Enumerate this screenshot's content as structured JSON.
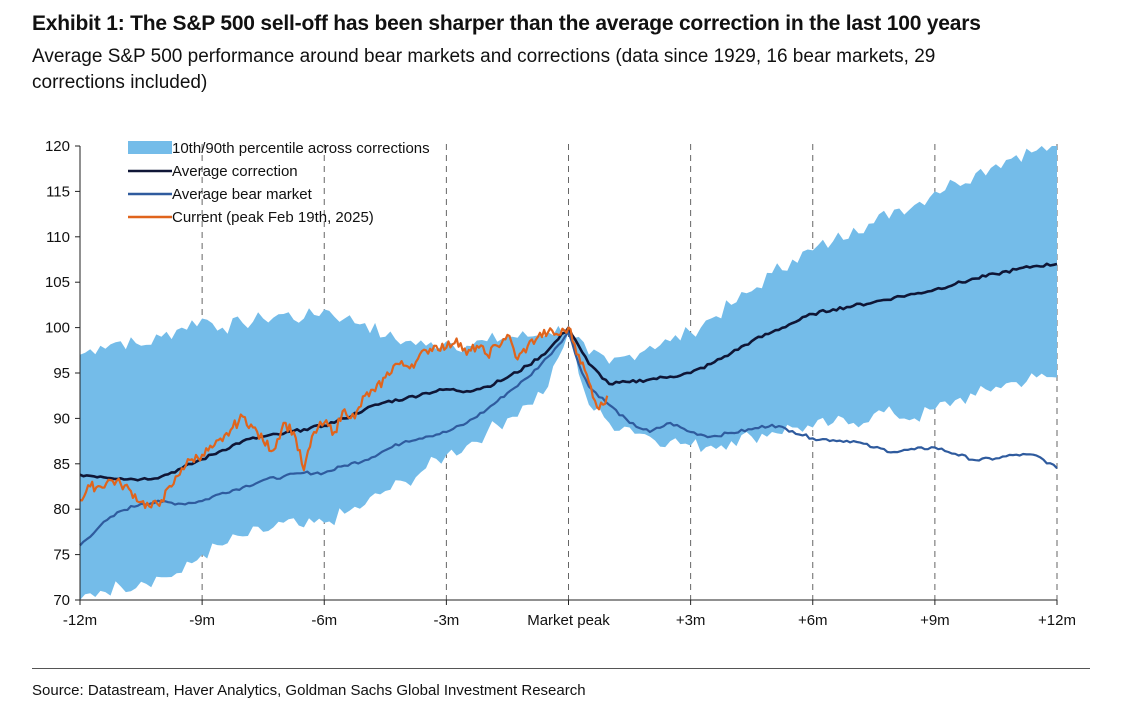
{
  "header": {
    "title": "Exhibit 1: The S&P 500 sell-off has been sharper than the average correction in the last 100 years",
    "subtitle": "Average S&P 500 performance around bear markets and corrections (data since 1929, 16 bear markets, 29 corrections included)"
  },
  "footer": {
    "source": "Source: Datastream, Haver Analytics, Goldman Sachs Global Investment Research"
  },
  "chart_data": {
    "type": "line",
    "title": "",
    "xlabel": "",
    "ylabel": "",
    "x_ticks": [
      "-12m",
      "-9m",
      "-6m",
      "-3m",
      "Market peak",
      "+3m",
      "+6m",
      "+9m",
      "+12m"
    ],
    "x_tick_values": [
      -12,
      -9,
      -6,
      -3,
      0,
      3,
      6,
      9,
      12
    ],
    "xlim": [
      -12,
      12
    ],
    "ylim": [
      70,
      120
    ],
    "y_ticks": [
      70,
      75,
      80,
      85,
      90,
      95,
      100,
      105,
      110,
      115,
      120
    ],
    "grid": "vertical dashed at x ticks",
    "legend_position": "top-left",
    "legend": [
      "10th/90th percentile across corrections",
      "Average correction",
      "Average bear market",
      "Current (peak Feb 19th, 2025)"
    ],
    "colors": {
      "band": "#74bce9",
      "average_correction": "#0f1636",
      "average_bear_market": "#2f5b9e",
      "current": "#e0641c"
    },
    "band": {
      "name": "10th/90th percentile across corrections",
      "x": [
        -12,
        -11.5,
        -11,
        -10.5,
        -10,
        -9.5,
        -9,
        -8.5,
        -8,
        -7.5,
        -7,
        -6.5,
        -6,
        -5.5,
        -5,
        -4.5,
        -4,
        -3.5,
        -3,
        -2.5,
        -2,
        -1.5,
        -1,
        -0.5,
        0,
        0.5,
        1,
        1.5,
        2,
        2.5,
        3,
        3.5,
        4,
        4.5,
        5,
        5.5,
        6,
        6.5,
        7,
        7.5,
        8,
        8.5,
        9,
        9.5,
        10,
        10.5,
        11,
        11.5,
        12
      ],
      "upper": [
        97,
        98,
        98.5,
        98,
        99,
        100,
        101,
        100,
        100.5,
        101,
        101.5,
        101,
        102,
        101,
        100.5,
        99,
        98.5,
        98,
        98.5,
        98,
        98.5,
        99,
        99,
        99.5,
        100,
        97,
        96,
        97,
        98,
        98.5,
        99.5,
        101,
        102.5,
        104,
        106,
        107.5,
        108.5,
        109.5,
        111,
        111.5,
        113,
        113.5,
        115,
        116,
        117,
        118,
        119,
        119.5,
        120
      ],
      "lower": [
        70,
        71,
        71.5,
        72,
        72.5,
        73,
        75,
        76,
        77,
        77.5,
        78.5,
        78,
        78.5,
        79.5,
        80.5,
        82,
        83,
        84.5,
        86,
        87,
        88.5,
        90,
        91.5,
        93.5,
        99.5,
        91.5,
        89.5,
        89,
        88,
        87.5,
        87,
        87,
        87.5,
        88,
        88.5,
        89,
        89,
        89.5,
        89.5,
        90.5,
        90.5,
        90,
        91,
        92,
        92.5,
        93.5,
        94,
        94.5,
        94.5
      ]
    },
    "series": [
      {
        "name": "Average correction",
        "x": [
          -12,
          -11.5,
          -11,
          -10.5,
          -10,
          -9.5,
          -9,
          -8.5,
          -8,
          -7.5,
          -7,
          -6.5,
          -6,
          -5.5,
          -5,
          -4.5,
          -4,
          -3.5,
          -3,
          -2.5,
          -2,
          -1.5,
          -1,
          -0.5,
          0,
          0.25,
          0.5,
          1,
          1.5,
          2,
          2.5,
          3,
          3.5,
          4,
          4.5,
          5,
          5.5,
          6,
          6.5,
          7,
          7.5,
          8,
          8.5,
          9,
          9.5,
          10,
          10.5,
          11,
          11.5,
          12
        ],
        "values": [
          83.8,
          83.6,
          83.4,
          83.3,
          83.6,
          84.5,
          85.5,
          86.5,
          87.5,
          88,
          88.3,
          88.8,
          89.2,
          90,
          91,
          91.8,
          92.2,
          92.8,
          93.2,
          93,
          93.5,
          94.5,
          95.8,
          97.5,
          100,
          98,
          96,
          93.8,
          94,
          94.3,
          94.6,
          95,
          96,
          97.2,
          98.5,
          99.5,
          100.5,
          101.5,
          102,
          102.4,
          102.8,
          103.3,
          103.7,
          104.2,
          104.8,
          105.4,
          105.9,
          106.4,
          106.8,
          107
        ]
      },
      {
        "name": "Average bear market",
        "x": [
          -12,
          -11.5,
          -11,
          -10.5,
          -10,
          -9.5,
          -9,
          -8.5,
          -8,
          -7.5,
          -7,
          -6.5,
          -6,
          -5.5,
          -5,
          -4.5,
          -4,
          -3.5,
          -3,
          -2.5,
          -2,
          -1.5,
          -1,
          -0.5,
          0,
          0.25,
          0.5,
          1,
          1.5,
          2,
          2.5,
          3,
          3.5,
          4,
          4.5,
          5,
          5.5,
          6,
          6.5,
          7,
          7.5,
          8,
          8.5,
          9,
          9.5,
          10,
          10.5,
          11,
          11.5,
          12
        ],
        "values": [
          76,
          78.2,
          79.8,
          80.6,
          80.8,
          80.6,
          80.9,
          81.8,
          82.4,
          83.2,
          83.6,
          84,
          84,
          84.8,
          85.4,
          86.5,
          87.5,
          88,
          88.5,
          89.5,
          91,
          92.8,
          94.5,
          96.8,
          99.5,
          96,
          93.5,
          91.5,
          89.5,
          88.5,
          89.5,
          88.5,
          88,
          88.4,
          88.8,
          89.3,
          88.6,
          87.8,
          87.6,
          87.5,
          86.8,
          86.3,
          86.6,
          86.8,
          86.1,
          85.4,
          85.6,
          86,
          85.9,
          84.5
        ]
      },
      {
        "name": "Current (peak Feb 19th, 2025)",
        "x": [
          -12,
          -11.75,
          -11.5,
          -11.25,
          -11,
          -10.75,
          -10.5,
          -10.25,
          -10,
          -9.75,
          -9.5,
          -9.25,
          -9,
          -8.75,
          -8.5,
          -8.25,
          -8,
          -7.75,
          -7.5,
          -7.25,
          -7,
          -6.75,
          -6.5,
          -6.25,
          -6,
          -5.75,
          -5.5,
          -5.25,
          -5,
          -4.75,
          -4.5,
          -4.25,
          -4,
          -3.75,
          -3.5,
          -3.25,
          -3,
          -2.75,
          -2.5,
          -2.25,
          -2,
          -1.75,
          -1.5,
          -1.25,
          -1,
          -0.75,
          -0.5,
          -0.25,
          0,
          0.25,
          0.5,
          0.75,
          0.95
        ],
        "values": [
          81,
          82.5,
          82.5,
          83.2,
          82.8,
          82,
          80.8,
          80.2,
          81,
          82.5,
          84.5,
          85.5,
          86,
          86.8,
          87.5,
          89,
          90.2,
          89,
          87.5,
          86.5,
          89.5,
          88.5,
          84.3,
          88.5,
          89.5,
          88.5,
          91,
          90,
          92.5,
          93,
          94.5,
          96,
          95.8,
          96.2,
          97.5,
          98,
          97.8,
          98.8,
          97,
          98,
          97,
          98,
          99.2,
          96.5,
          98,
          99,
          99.5,
          99.2,
          100,
          97,
          94,
          91,
          92.5
        ]
      }
    ]
  }
}
